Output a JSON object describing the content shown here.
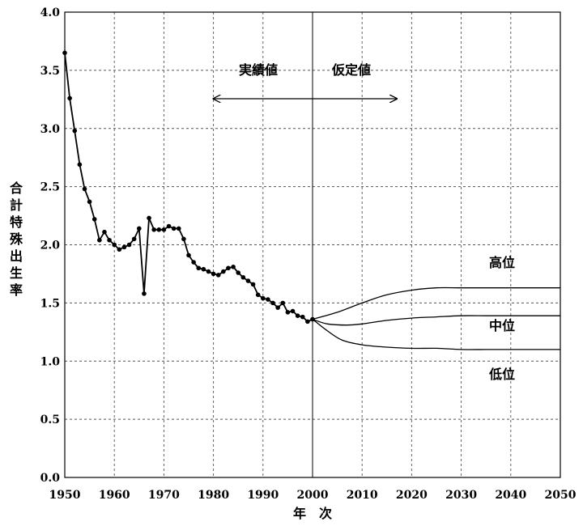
{
  "chart_data": {
    "type": "line",
    "xlabel": "年　次",
    "ylabel": "合計特殊出生率",
    "xlim": [
      1950,
      2050
    ],
    "ylim": [
      0.0,
      4.0
    ],
    "x_ticks": [
      "1950",
      "1960",
      "1970",
      "1980",
      "1990",
      "2000",
      "2010",
      "2020",
      "2030",
      "2040",
      "2050"
    ],
    "y_ticks": [
      "0.0",
      "0.5",
      "1.0",
      "1.5",
      "2.0",
      "2.5",
      "3.0",
      "3.5",
      "4.0"
    ],
    "grid": true,
    "divider_x": 2000,
    "annotations": {
      "actual": "実績値",
      "assumed": "仮定値",
      "arrow_from": 1980,
      "arrow_to": 2017
    },
    "series": [
      {
        "name": "",
        "markers": true,
        "x": [
          1950,
          1951,
          1952,
          1953,
          1954,
          1955,
          1956,
          1957,
          1958,
          1959,
          1960,
          1961,
          1962,
          1963,
          1964,
          1965,
          1966,
          1967,
          1968,
          1969,
          1970,
          1971,
          1972,
          1973,
          1974,
          1975,
          1976,
          1977,
          1978,
          1979,
          1980,
          1981,
          1982,
          1983,
          1984,
          1985,
          1986,
          1987,
          1988,
          1989,
          1990,
          1991,
          1992,
          1993,
          1994,
          1995,
          1996,
          1997,
          1998,
          1999,
          2000
        ],
        "values": [
          3.65,
          3.26,
          2.98,
          2.69,
          2.48,
          2.37,
          2.22,
          2.04,
          2.11,
          2.04,
          2.0,
          1.96,
          1.98,
          2.0,
          2.05,
          2.14,
          1.58,
          2.23,
          2.13,
          2.13,
          2.13,
          2.16,
          2.14,
          2.14,
          2.05,
          1.91,
          1.85,
          1.8,
          1.79,
          1.77,
          1.75,
          1.74,
          1.77,
          1.8,
          1.81,
          1.76,
          1.72,
          1.69,
          1.66,
          1.57,
          1.54,
          1.53,
          1.5,
          1.46,
          1.5,
          1.42,
          1.43,
          1.39,
          1.38,
          1.34,
          1.36
        ]
      },
      {
        "name": "高位",
        "markers": false,
        "x": [
          2000,
          2005,
          2010,
          2015,
          2020,
          2025,
          2030,
          2035,
          2040,
          2045,
          2050
        ],
        "values": [
          1.36,
          1.42,
          1.5,
          1.57,
          1.61,
          1.63,
          1.63,
          1.63,
          1.63,
          1.63,
          1.63
        ]
      },
      {
        "name": "中位",
        "markers": false,
        "x": [
          2000,
          2003,
          2007,
          2010,
          2015,
          2020,
          2025,
          2030,
          2035,
          2040,
          2045,
          2050
        ],
        "values": [
          1.36,
          1.32,
          1.31,
          1.32,
          1.35,
          1.37,
          1.38,
          1.39,
          1.39,
          1.39,
          1.39,
          1.39
        ]
      },
      {
        "name": "低位",
        "markers": false,
        "x": [
          2000,
          2003,
          2006,
          2010,
          2015,
          2020,
          2025,
          2030,
          2035,
          2040,
          2045,
          2050
        ],
        "values": [
          1.36,
          1.26,
          1.18,
          1.14,
          1.12,
          1.11,
          1.11,
          1.1,
          1.1,
          1.1,
          1.1,
          1.1
        ]
      }
    ]
  }
}
